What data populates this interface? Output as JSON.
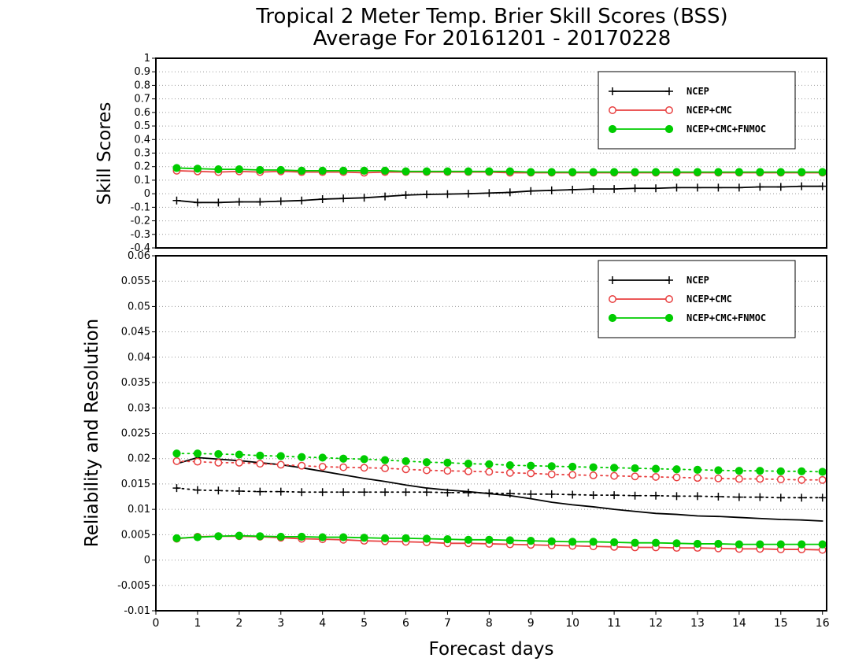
{
  "chart_data": [
    {
      "type": "line",
      "title": "Tropical 2 Meter Temp. Brier Skill Scores (BSS)",
      "subtitle": "Average For 20161201 - 20170228",
      "ylabel": "Skill Scores",
      "ylim": [
        -0.4,
        1
      ],
      "yticks": [
        -0.4,
        -0.3,
        -0.2,
        -0.1,
        0,
        0.1,
        0.2,
        0.3,
        0.4,
        0.5,
        0.6,
        0.7,
        0.8,
        0.9,
        1
      ],
      "ytick_labels": [
        "-0.4",
        "-0.3",
        "-0.2",
        "-0.1",
        "0",
        "0.1",
        "0.2",
        "0.3",
        "0.4",
        "0.5",
        "0.6",
        "0.7",
        "0.8",
        "0.9",
        "1"
      ],
      "grid": true,
      "legend_position": "top-right",
      "x": [
        0.5,
        1,
        1.5,
        2,
        2.5,
        3,
        3.5,
        4,
        4.5,
        5,
        5.5,
        6,
        6.5,
        7,
        7.5,
        8,
        8.5,
        9,
        9.5,
        10,
        10.5,
        11,
        11.5,
        12,
        12.5,
        13,
        13.5,
        14,
        14.5,
        15,
        15.5,
        16
      ],
      "series": [
        {
          "name": "NCEP",
          "color": "#000000",
          "marker": "plus",
          "style": "solid",
          "values": [
            -0.05,
            -0.065,
            -0.065,
            -0.06,
            -0.06,
            -0.055,
            -0.05,
            -0.04,
            -0.035,
            -0.03,
            -0.02,
            -0.01,
            -0.005,
            -0.003,
            0,
            0.005,
            0.01,
            0.02,
            0.025,
            0.03,
            0.035,
            0.035,
            0.04,
            0.04,
            0.045,
            0.045,
            0.045,
            0.045,
            0.05,
            0.05,
            0.055,
            0.055
          ]
        },
        {
          "name": "NCEP+CMC",
          "color": "#e84040",
          "marker": "open-circle",
          "style": "solid",
          "values": [
            0.17,
            0.165,
            0.16,
            0.165,
            0.16,
            0.165,
            0.16,
            0.16,
            0.16,
            0.155,
            0.16,
            0.16,
            0.16,
            0.16,
            0.16,
            0.16,
            0.155,
            0.155,
            0.155,
            0.155,
            0.155,
            0.155,
            0.155,
            0.155,
            0.155,
            0.155,
            0.155,
            0.155,
            0.155,
            0.155,
            0.155,
            0.155
          ]
        },
        {
          "name": "NCEP+CMC+FNMOC",
          "color": "#00cc00",
          "marker": "filled-circle",
          "style": "solid",
          "values": [
            0.19,
            0.185,
            0.18,
            0.18,
            0.175,
            0.175,
            0.17,
            0.17,
            0.17,
            0.17,
            0.17,
            0.165,
            0.165,
            0.165,
            0.165,
            0.165,
            0.165,
            0.16,
            0.16,
            0.16,
            0.16,
            0.16,
            0.16,
            0.16,
            0.16,
            0.16,
            0.16,
            0.16,
            0.16,
            0.16,
            0.16,
            0.16
          ]
        }
      ]
    },
    {
      "type": "line",
      "ylabel": "Reliability and Resolution",
      "xlabel": "Forecast days",
      "ylim": [
        -0.01,
        0.06
      ],
      "yticks": [
        -0.01,
        -0.005,
        0,
        0.005,
        0.01,
        0.015,
        0.02,
        0.025,
        0.03,
        0.035,
        0.04,
        0.045,
        0.05,
        0.055,
        0.06
      ],
      "ytick_labels": [
        "-0.01",
        "-0.005",
        "0",
        "0.005",
        "0.01",
        "0.015",
        "0.02",
        "0.025",
        "0.03",
        "0.035",
        "0.04",
        "0.045",
        "0.05",
        "0.055",
        "0.06"
      ],
      "xlim": [
        0,
        16.1
      ],
      "xticks": [
        0,
        1,
        2,
        3,
        4,
        5,
        6,
        7,
        8,
        9,
        10,
        11,
        12,
        13,
        14,
        15,
        16
      ],
      "xtick_labels": [
        "0",
        "1",
        "2",
        "3",
        "4",
        "5",
        "6",
        "7",
        "8",
        "9",
        "10",
        "11",
        "12",
        "13",
        "14",
        "15",
        "16"
      ],
      "grid": true,
      "legend_position": "top-right",
      "legend": [
        {
          "name": "NCEP",
          "color": "#000000",
          "marker": "plus"
        },
        {
          "name": "NCEP+CMC",
          "color": "#e84040",
          "marker": "open-circle"
        },
        {
          "name": "NCEP+CMC+FNMOC",
          "color": "#00cc00",
          "marker": "filled-circle"
        }
      ],
      "x": [
        0.5,
        1,
        1.5,
        2,
        2.5,
        3,
        3.5,
        4,
        4.5,
        5,
        5.5,
        6,
        6.5,
        7,
        7.5,
        8,
        8.5,
        9,
        9.5,
        10,
        10.5,
        11,
        11.5,
        12,
        12.5,
        13,
        13.5,
        14,
        14.5,
        15,
        15.5,
        16
      ],
      "series": [
        {
          "color": "#000000",
          "marker": "none",
          "style": "solid",
          "values": [
            0.019,
            0.0202,
            0.0199,
            0.0196,
            0.0192,
            0.0188,
            0.0182,
            0.0175,
            0.0168,
            0.0161,
            0.0155,
            0.0148,
            0.0142,
            0.0138,
            0.0135,
            0.0131,
            0.0127,
            0.0121,
            0.0114,
            0.0109,
            0.0105,
            0.01,
            0.0096,
            0.0092,
            0.009,
            0.0087,
            0.0086,
            0.0084,
            0.0082,
            0.008,
            0.0079,
            0.0077
          ]
        },
        {
          "color": "#000000",
          "marker": "plus",
          "style": "dotted",
          "values": [
            0.0142,
            0.0138,
            0.0137,
            0.0136,
            0.0135,
            0.0135,
            0.0134,
            0.0134,
            0.0134,
            0.0134,
            0.0134,
            0.0134,
            0.0134,
            0.0133,
            0.0133,
            0.0132,
            0.0131,
            0.013,
            0.013,
            0.0129,
            0.0128,
            0.0128,
            0.0127,
            0.0127,
            0.0126,
            0.0126,
            0.0125,
            0.0124,
            0.0124,
            0.0123,
            0.0123,
            0.0123
          ]
        },
        {
          "color": "#e84040",
          "marker": "open-circle",
          "style": "dotted",
          "values": [
            0.0195,
            0.0194,
            0.0192,
            0.0192,
            0.019,
            0.0188,
            0.0186,
            0.0184,
            0.0183,
            0.0182,
            0.0181,
            0.0179,
            0.0177,
            0.0176,
            0.0175,
            0.0174,
            0.0172,
            0.0171,
            0.0169,
            0.0168,
            0.0167,
            0.0166,
            0.0165,
            0.0164,
            0.0163,
            0.0162,
            0.0161,
            0.016,
            0.016,
            0.0159,
            0.0158,
            0.0158
          ]
        },
        {
          "color": "#00cc00",
          "marker": "filled-circle",
          "style": "dotted",
          "values": [
            0.021,
            0.021,
            0.0209,
            0.0208,
            0.0206,
            0.0205,
            0.0203,
            0.0202,
            0.02,
            0.0199,
            0.0197,
            0.0195,
            0.0193,
            0.0192,
            0.019,
            0.0189,
            0.0187,
            0.0186,
            0.0185,
            0.0184,
            0.0183,
            0.0182,
            0.0181,
            0.018,
            0.0179,
            0.0178,
            0.0177,
            0.0176,
            0.0176,
            0.0175,
            0.0175,
            0.0174
          ]
        },
        {
          "color": "#e84040",
          "marker": "open-circle",
          "style": "solid",
          "values": [
            0.0042,
            0.0046,
            0.0047,
            0.0047,
            0.0046,
            0.0044,
            0.0042,
            0.0041,
            0.004,
            0.0038,
            0.0037,
            0.0036,
            0.0035,
            0.0033,
            0.0033,
            0.0032,
            0.0031,
            0.003,
            0.0029,
            0.0028,
            0.0027,
            0.0026,
            0.0025,
            0.0025,
            0.0024,
            0.0024,
            0.0023,
            0.0022,
            0.0022,
            0.0021,
            0.0021,
            0.002
          ]
        },
        {
          "color": "#00cc00",
          "marker": "filled-circle",
          "style": "solid",
          "values": [
            0.0043,
            0.0045,
            0.0047,
            0.0048,
            0.0047,
            0.0046,
            0.0046,
            0.0045,
            0.0045,
            0.0044,
            0.0043,
            0.0043,
            0.0042,
            0.0041,
            0.004,
            0.004,
            0.0039,
            0.0038,
            0.0037,
            0.0036,
            0.0036,
            0.0035,
            0.0034,
            0.0034,
            0.0033,
            0.0032,
            0.0032,
            0.0031,
            0.0031,
            0.0031,
            0.0031,
            0.0031
          ]
        }
      ]
    }
  ]
}
